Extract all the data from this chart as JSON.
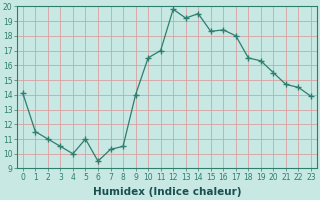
{
  "x": [
    0,
    1,
    2,
    3,
    4,
    5,
    6,
    7,
    8,
    9,
    10,
    11,
    12,
    13,
    14,
    15,
    16,
    17,
    18,
    19,
    20,
    21,
    22,
    23
  ],
  "y": [
    14.1,
    11.5,
    11.0,
    10.5,
    10.0,
    11.0,
    9.5,
    10.3,
    10.5,
    14.0,
    16.5,
    17.0,
    19.8,
    19.2,
    19.5,
    18.3,
    18.4,
    18.0,
    16.5,
    16.3,
    15.5,
    14.7,
    14.5,
    13.9
  ],
  "xlabel": "Humidex (Indice chaleur)",
  "ylim": [
    9,
    20
  ],
  "xlim": [
    -0.5,
    23.5
  ],
  "yticks": [
    9,
    10,
    11,
    12,
    13,
    14,
    15,
    16,
    17,
    18,
    19,
    20
  ],
  "xticks": [
    0,
    1,
    2,
    3,
    4,
    5,
    6,
    7,
    8,
    9,
    10,
    11,
    12,
    13,
    14,
    15,
    16,
    17,
    18,
    19,
    20,
    21,
    22,
    23
  ],
  "line_color": "#2e7d6e",
  "marker_color": "#2e7d6e",
  "bg_color": "#c8e8e4",
  "grid_color": "#d8a0a0",
  "tick_color": "#2e7d6e",
  "label_color": "#1a5050",
  "tick_label_fontsize": 5.5,
  "xlabel_fontsize": 7.5
}
